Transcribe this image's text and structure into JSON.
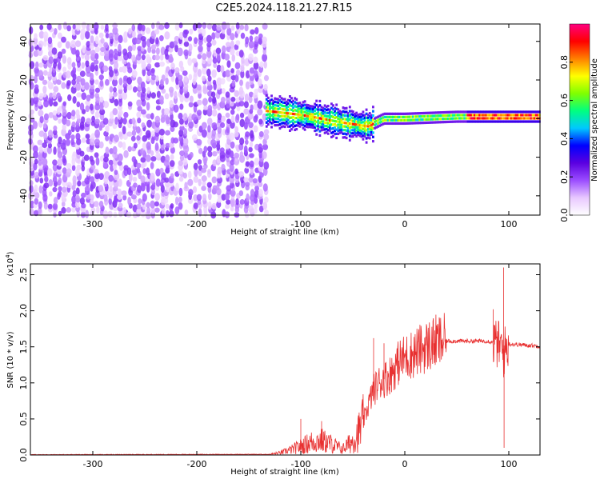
{
  "title": "C2E5.2024.118.21.27.R15",
  "chart_data": [
    {
      "type": "heatmap",
      "title": "C2E5.2024.118.21.27.R15",
      "xlabel": "Height of straight line (km)",
      "ylabel": "Frequency (Hz)",
      "xlim": [
        -360,
        130
      ],
      "ylim": [
        -50,
        49
      ],
      "xticks": [
        -300,
        -200,
        -100,
        0,
        100
      ],
      "xtick_labels": [
        "-300",
        "-200",
        "-100",
        "0",
        "100"
      ],
      "yticks": [
        -40,
        -20,
        0,
        20,
        40
      ],
      "ytick_labels": [
        "-40",
        "-20",
        "0",
        "20",
        "40"
      ],
      "colorbar": {
        "label": "Normalized spectral amplitude",
        "range": [
          0,
          1
        ],
        "ticks": [
          0.0,
          0.2,
          0.4,
          0.6,
          0.8
        ],
        "tick_labels": [
          "0.0",
          "0.2",
          "0.4",
          "0.6",
          "0.8"
        ],
        "colormap": [
          "#ffffff",
          "#e8c8ff",
          "#9b4dff",
          "#5a00e0",
          "#0000ff",
          "#00c8ff",
          "#00ff80",
          "#80ff00",
          "#ffff00",
          "#ff8000",
          "#ff0000",
          "#ff0080"
        ]
      },
      "regions": [
        {
          "name": "broadband noise",
          "x_range": [
            -360,
            -133
          ],
          "freq_range": [
            -50,
            49
          ],
          "amplitude": 0.15
        },
        {
          "name": "signal band",
          "x_range": [
            -133,
            130
          ],
          "center_freq": [
            [
              -133,
              4
            ],
            [
              -100,
              2
            ],
            [
              -60,
              -2
            ],
            [
              -35,
              -4
            ],
            [
              -20,
              0
            ],
            [
              0,
              0
            ],
            [
              50,
              1
            ],
            [
              130,
              1
            ]
          ],
          "amplitude_range": [
            0.3,
            1.0
          ]
        }
      ],
      "grid": false
    },
    {
      "type": "line",
      "xlabel": "Height of straight line (km)",
      "ylabel": "SNR (10 * v/v)",
      "yscale_label": "(x10",
      "yscale_exponent": "4",
      "xlim": [
        -360,
        130
      ],
      "ylim": [
        0,
        2.65
      ],
      "xticks": [
        -300,
        -200,
        -100,
        0,
        100
      ],
      "xtick_labels": [
        "-300",
        "-200",
        "-100",
        "0",
        "100"
      ],
      "yticks": [
        0.0,
        0.5,
        1.0,
        1.5,
        2.0,
        2.5
      ],
      "ytick_labels": [
        "0.0",
        "0.5",
        "1.0",
        "1.5",
        "2.0",
        "2.5"
      ],
      "line_color": "#e83030",
      "envelope": {
        "x": [
          -360,
          -130,
          -120,
          -110,
          -100,
          -90,
          -80,
          -70,
          -60,
          -50,
          -45,
          -40,
          -35,
          -30,
          -25,
          -20,
          -15,
          -10,
          -5,
          0,
          10,
          20,
          30,
          40,
          50,
          60,
          70,
          80,
          85,
          90,
          92,
          94,
          95,
          96,
          98,
          100,
          110,
          120,
          130
        ],
        "y": [
          0.005,
          0.01,
          0.03,
          0.07,
          0.12,
          0.18,
          0.2,
          0.15,
          0.08,
          0.2,
          0.3,
          0.45,
          0.7,
          0.9,
          1.0,
          1.05,
          1.1,
          1.2,
          1.3,
          1.35,
          1.42,
          1.5,
          1.56,
          1.58,
          1.58,
          1.58,
          1.58,
          1.58,
          1.56,
          1.53,
          1.5,
          1.45,
          1.4,
          1.45,
          1.5,
          1.54,
          1.53,
          1.52,
          1.51
        ]
      },
      "spikes": [
        {
          "x": -100,
          "y": 0.5
        },
        {
          "x": -80,
          "y": 0.47
        },
        {
          "x": -30,
          "y": 1.62
        },
        {
          "x": -20,
          "y": 1.55
        },
        {
          "x": 85,
          "y": 2.02
        },
        {
          "x": 95,
          "y": 2.6
        },
        {
          "x": 95.5,
          "y": 0.1
        }
      ],
      "grid": false
    }
  ]
}
